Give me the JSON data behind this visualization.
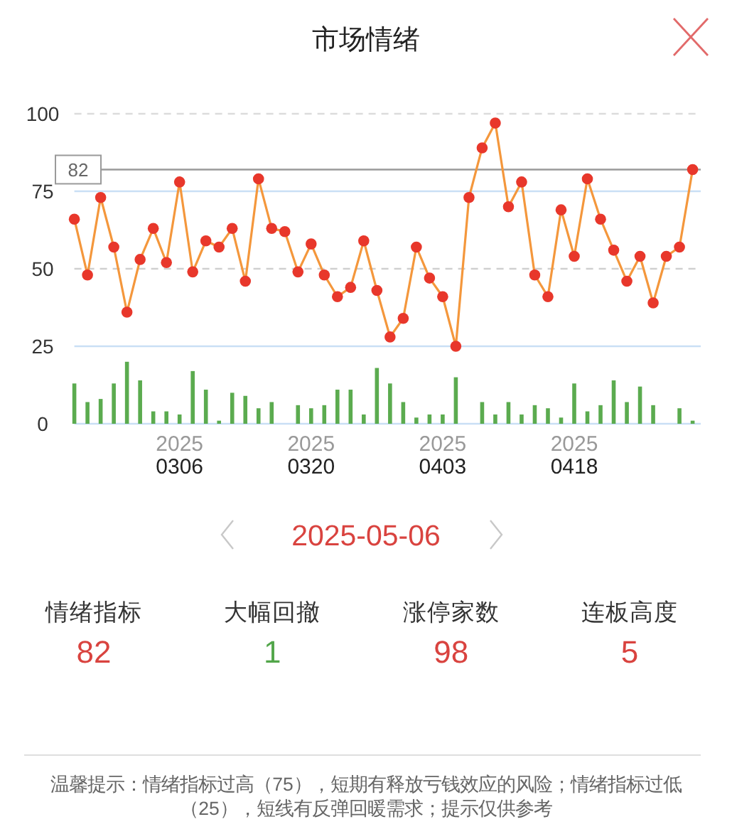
{
  "chart_data": [
    {
      "type": "line",
      "title": "市场情绪",
      "categories": [
        null,
        null,
        null,
        null,
        null,
        null,
        null,
        null,
        "2025\n0306",
        null,
        null,
        null,
        null,
        null,
        null,
        null,
        null,
        null,
        "2025\n0320",
        null,
        null,
        null,
        null,
        null,
        null,
        null,
        null,
        null,
        "2025\n0403",
        null,
        null,
        null,
        null,
        null,
        null,
        null,
        null,
        null,
        "2025\n0418",
        null,
        null,
        null,
        null,
        null,
        null,
        null,
        null,
        null
      ],
      "series": [
        {
          "type": "bar",
          "color": "#5bab4f",
          "values": [
            13,
            7,
            8,
            13,
            20,
            14,
            4,
            4,
            3,
            17,
            11,
            1,
            10,
            9,
            5,
            7,
            0,
            6,
            5,
            6,
            11,
            11,
            3,
            18,
            13,
            7,
            2,
            3,
            3,
            15,
            0,
            7,
            3,
            7,
            3,
            6,
            5,
            2,
            13,
            4,
            6,
            14,
            7,
            12,
            6,
            0,
            5,
            1
          ]
        },
        {
          "type": "line",
          "color": "#f4973c",
          "colors": [
            "#e8372b",
            "#e8372b",
            "#e8372b",
            "#e8372b",
            "#e8372b",
            "#e8372b",
            "#e8372b",
            "#e8372b",
            "#e8372b",
            "#e8372b",
            "#e8372b",
            "#e8372b",
            "#e8372b",
            "#e8372b",
            "#e8372b",
            "#e8372b",
            "#e8372b",
            "#e8372b",
            "#e8372b",
            "#e8372b",
            "#e8372b",
            "#e8372b",
            "#e8372b",
            "#e8372b",
            "#e8372b",
            "#e8372b",
            "#e8372b",
            "#e8372b",
            "#e8372b",
            "#e8372b",
            "#e8372b",
            "#e8372b",
            "#e8372b",
            "#e8372b",
            "#e8372b",
            "#e8372b",
            "#e8372b",
            "#e8372b",
            "#e8372b",
            "#e8372b",
            "#e8372b",
            "#e8372b",
            "#e8372b",
            "#e8372b",
            "#e8372b",
            "#e8372b",
            "#e8372b",
            "#e8372b"
          ],
          "values": [
            66,
            48,
            73,
            57,
            36,
            53,
            63,
            52,
            78,
            49,
            59,
            57,
            63,
            46,
            79,
            63,
            62,
            49,
            58,
            48,
            41,
            44,
            59,
            43,
            28,
            34,
            57,
            47,
            41,
            25,
            73,
            89,
            97,
            70,
            78,
            48,
            41,
            69,
            54,
            79,
            66,
            56,
            46,
            54,
            39,
            54,
            57,
            82
          ]
        }
      ],
      "ylim": [
        0,
        100
      ],
      "yticks": [
        0,
        25,
        50,
        75,
        100
      ],
      "marker": "circle",
      "line_style": "solid",
      "ref_lines": [
        {
          "axis": "y",
          "value": 100,
          "color": "#dcdcdc",
          "line_style": "dashed"
        },
        {
          "axis": "y",
          "value": 75,
          "color": "#c9dff5"
        },
        {
          "axis": "y",
          "value": 50,
          "color": "#d0d0d0",
          "line_style": "dashed"
        },
        {
          "axis": "y",
          "value": 25,
          "color": "#c9dff5"
        },
        {
          "axis": "y",
          "value": 82,
          "label": "82",
          "color": "#9a9a9a"
        }
      ]
    },
    {
      "type": "other",
      "title": "2025-05-06",
      "categories": [
        "情绪指标",
        "大幅回撤",
        "涨停家数",
        "连板高度"
      ],
      "values": [
        82,
        1,
        98,
        5
      ],
      "colors": [
        "#d9433f",
        "#52a64a",
        "#d9433f",
        "#d9433f"
      ],
      "data_labels": true,
      "annotations": [
        "温馨提示：情绪指标过高（75），短期有释放亏钱效应的风险；情绪指标过低（25），短线有反弹回暖需求；提示仅供参考"
      ]
    }
  ]
}
